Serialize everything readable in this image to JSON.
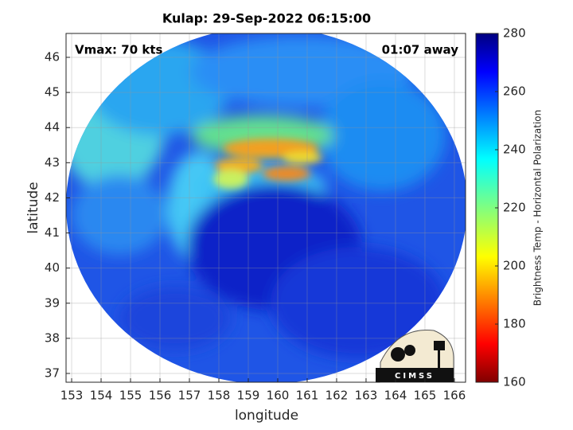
{
  "chart_data": {
    "type": "image",
    "title": "Kulap: 29-Sep-2022 06:15:00",
    "annotations": [
      "Vmax: 70 kts",
      "01:07 away"
    ],
    "xlabel": "longitude",
    "ylabel": "latitude",
    "xlim": [
      152.81,
      166.38
    ],
    "ylim": [
      36.75,
      46.68
    ],
    "xticks": [
      153,
      154,
      155,
      156,
      157,
      158,
      159,
      160,
      161,
      162,
      163,
      164,
      165,
      166
    ],
    "yticks": [
      37,
      38,
      39,
      40,
      41,
      42,
      43,
      44,
      45,
      46
    ],
    "grid": true,
    "colorbar": {
      "label": "Brightness Temp - Horizontal Polarization",
      "lim": [
        160,
        280
      ],
      "ticks": [
        160,
        180,
        200,
        220,
        240,
        260,
        280
      ]
    }
  },
  "logo": "CIMSS"
}
